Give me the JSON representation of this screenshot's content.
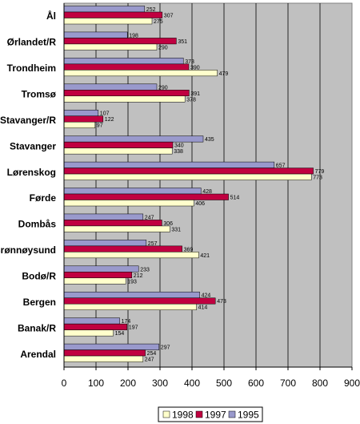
{
  "chart_data": {
    "type": "bar",
    "orientation": "horizontal",
    "categories": [
      "Ål",
      "Ørlandet/R",
      "Trondheim",
      "Tromsø",
      "Stavanger/R",
      "Stavanger",
      "Lørenskog",
      "Førde",
      "Dombås",
      "Brønnøysund",
      "Bodø/R",
      "Bergen",
      "Banak/R",
      "Arendal"
    ],
    "series": [
      {
        "name": "1995",
        "color": "#9999cc",
        "values": [
          252,
          198,
          373,
          290,
          107,
          435,
          657,
          428,
          247,
          257,
          233,
          424,
          174,
          297
        ]
      },
      {
        "name": "1997",
        "color": "#c00040",
        "values": [
          307,
          351,
          390,
          391,
          122,
          340,
          779,
          514,
          306,
          369,
          212,
          473,
          197,
          254
        ]
      },
      {
        "name": "1998",
        "color": "#ffffcc",
        "values": [
          275,
          290,
          479,
          378,
          97,
          338,
          773,
          406,
          331,
          421,
          193,
          414,
          154,
          247
        ]
      }
    ],
    "legend_order": [
      "1998",
      "1997",
      "1995"
    ],
    "legend_position": "bottom-right",
    "x_ticks": [
      0,
      100,
      200,
      300,
      400,
      500,
      600,
      700,
      800,
      900
    ],
    "xlim": [
      0,
      900
    ],
    "grid": true,
    "plot_background": "#c0c0c0"
  }
}
